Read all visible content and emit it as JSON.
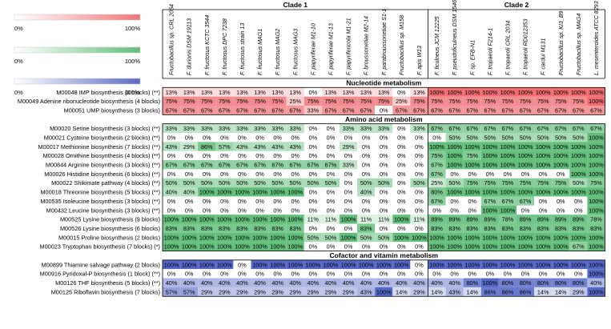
{
  "chart_data": {
    "type": "heatmap",
    "legend": [
      {
        "min": "0%",
        "max": "100%",
        "color": "#f0767a"
      },
      {
        "min": "0%",
        "max": "100%",
        "color": "#62bf79"
      },
      {
        "min": "0%",
        "max": "100%",
        "color": "#5a6ac6"
      }
    ],
    "clades": [
      {
        "label": "Clade 1",
        "count": 15
      },
      {
        "label": "Clade 2",
        "count": 10
      }
    ],
    "columns": [
      "Fructobacillus sp. CRL 2054",
      "F. durionis DSM 19113",
      "F. fructosus KCTC 3544",
      "F. fructosus DPC 7238",
      "F. fructosus strain 13",
      "F. fructosus MAG1",
      "F. fructosus MAG2",
      "F. fructosus MAG3",
      "F. papyriferae M1-10",
      "F. papyriferae M1-13",
      "F. papyrifericola M1-21",
      "F. broussonetiae M2-14",
      "F. parabroussonetiae S1-1",
      "Fructobacillus sp. M158",
      "F. apis W13",
      "F. ficulneus JCM 12225",
      "F. pseudoficulneus DSM 15468",
      "F. sp. EFB-N1",
      "F. tropaeoli F214-1",
      "F. tropaeoli CRL 2034",
      "F. tropaeoli RD012353",
      "F. cardui M131",
      "Fructobacillus sp. KI3_B9",
      "Fructobacillus sp. MAG4",
      "L. mesenteroides ATCC 8293"
    ],
    "sections": [
      {
        "title": "Nucleotide metabolism",
        "color": "red",
        "rows": [
          {
            "label": "M00048 IMP biosynthesis (8 blocks) (**)",
            "values": [
              13,
              13,
              13,
              13,
              13,
              13,
              13,
              13,
              0,
              13,
              13,
              13,
              13,
              0,
              13,
              100,
              100,
              100,
              100,
              100,
              100,
              100,
              100,
              100,
              100
            ]
          },
          {
            "label": "M00049 Adenine ribonucleotide biosynthesis (4 blocks)",
            "values": [
              75,
              75,
              75,
              75,
              75,
              75,
              75,
              25,
              75,
              75,
              75,
              75,
              75,
              25,
              75,
              75,
              75,
              75,
              75,
              75,
              75,
              75,
              75,
              75,
              100
            ]
          },
          {
            "label": "M00051 UMP biosynthesis (3 blocks)",
            "values": [
              67,
              67,
              67,
              67,
              67,
              67,
              67,
              67,
              33,
              67,
              67,
              67,
              0,
              67,
              67,
              67,
              67,
              67,
              67,
              67,
              67,
              67,
              67,
              67,
              67
            ]
          }
        ]
      },
      {
        "title": "Amino acid metabolism",
        "color": "green",
        "rows": [
          {
            "label": "M00020 Serine biosynthesis (3 blocks) (**)",
            "values": [
              33,
              33,
              33,
              33,
              33,
              33,
              33,
              33,
              0,
              0,
              33,
              33,
              33,
              0,
              33,
              67,
              67,
              67,
              67,
              67,
              67,
              67,
              67,
              67,
              67
            ]
          },
          {
            "label": "M00021 Cysteine biosynthesis (2 blocks) (**)",
            "values": [
              0,
              0,
              0,
              0,
              0,
              0,
              0,
              0,
              0,
              0,
              0,
              0,
              0,
              0,
              0,
              0,
              50,
              50,
              50,
              50,
              50,
              50,
              50,
              50,
              100
            ]
          },
          {
            "label": "M00017 Methionine biosynthesis (7 blocks) (**)",
            "values": [
              43,
              29,
              86,
              57,
              43,
              43,
              43,
              43,
              0,
              0,
              29,
              0,
              0,
              0,
              0,
              100,
              100,
              100,
              100,
              100,
              100,
              100,
              100,
              100,
              100
            ]
          },
          {
            "label": "M00028 Ornithine biosynthesis (4 blocks) (**)",
            "values": [
              0,
              0,
              0,
              0,
              0,
              0,
              0,
              0,
              0,
              0,
              0,
              0,
              0,
              0,
              0,
              75,
              100,
              75,
              100,
              100,
              100,
              100,
              100,
              100,
              100
            ]
          },
          {
            "label": "M00844 Arginine biosynthesis (3 blocks) (**)",
            "values": [
              67,
              67,
              67,
              67,
              67,
              67,
              67,
              67,
              67,
              67,
              33,
              0,
              0,
              0,
              0,
              67,
              100,
              100,
              100,
              100,
              100,
              100,
              100,
              100,
              100
            ]
          },
          {
            "label": "M00026 Histidine biosynthesis (6 blocks) (**)",
            "values": [
              0,
              0,
              0,
              0,
              0,
              0,
              0,
              0,
              0,
              0,
              0,
              0,
              0,
              0,
              0,
              67,
              0,
              0,
              0,
              0,
              0,
              0,
              0,
              100,
              100
            ]
          },
          {
            "label": "M00022 Shikimate pathway (4 blocks) (**)",
            "values": [
              50,
              50,
              50,
              50,
              50,
              50,
              50,
              50,
              50,
              50,
              0,
              50,
              50,
              0,
              50,
              25,
              50,
              75,
              75,
              75,
              75,
              75,
              75,
              50,
              75
            ]
          },
          {
            "label": "M00018 Threonine biosynthesis (5 blocks) (**)",
            "values": [
              40,
              40,
              100,
              100,
              100,
              100,
              100,
              100,
              0,
              0,
              0,
              40,
              0,
              0,
              0,
              80,
              100,
              100,
              100,
              100,
              100,
              100,
              100,
              100,
              100
            ]
          },
          {
            "label": "M00535 Isoleucine biosynthesis (3 blocks) (**)",
            "values": [
              0,
              0,
              0,
              0,
              0,
              0,
              0,
              0,
              0,
              0,
              0,
              0,
              0,
              0,
              0,
              67,
              0,
              0,
              67,
              67,
              67,
              0,
              0,
              0,
              100
            ]
          },
          {
            "label": "M00432 Leucine biosynthesis (3 blocks) (**)",
            "values": [
              0,
              0,
              0,
              0,
              0,
              0,
              0,
              0,
              0,
              0,
              0,
              0,
              0,
              0,
              0,
              0,
              0,
              0,
              100,
              100,
              0,
              0,
              0,
              0,
              100
            ]
          },
          {
            "label": "M00525 Lysine biosynthesis (9 blocks)",
            "values": [
              100,
              100,
              100,
              100,
              100,
              100,
              100,
              100,
              11,
              11,
              100,
              11,
              11,
              100,
              11,
              89,
              89,
              89,
              89,
              78,
              89,
              89,
              89,
              89,
              78
            ]
          },
          {
            "label": "M00526 Lysine biosynthesis (6 blocks)",
            "values": [
              83,
              83,
              83,
              83,
              83,
              83,
              83,
              83,
              0,
              0,
              0,
              83,
              0,
              0,
              0,
              83,
              83,
              83,
              83,
              83,
              83,
              83,
              83,
              83,
              83
            ]
          },
          {
            "label": "M00015 Proline biosynthesis (2 blocks)",
            "values": [
              100,
              100,
              100,
              100,
              100,
              100,
              100,
              100,
              50,
              50,
              100,
              50,
              50,
              100,
              100,
              100,
              100,
              100,
              100,
              100,
              100,
              100,
              100,
              100,
              100
            ]
          },
          {
            "label": "M00023 Tryptophan biosynthesis (7 blocks) (*)",
            "values": [
              100,
              100,
              100,
              100,
              100,
              100,
              100,
              100,
              0,
              0,
              0,
              0,
              0,
              0,
              0,
              100,
              100,
              100,
              100,
              100,
              100,
              100,
              100,
              67,
              100
            ]
          }
        ]
      },
      {
        "title": "Cofactor and vitamin metabolism",
        "color": "blue",
        "rows": [
          {
            "label": "M00899 Thiamine salvage pathway (2 blocks)",
            "values": [
              100,
              100,
              100,
              100,
              0,
              100,
              100,
              100,
              100,
              100,
              100,
              100,
              100,
              100,
              0,
              100,
              100,
              100,
              100,
              100,
              100,
              100,
              100,
              100,
              100
            ]
          },
          {
            "label": "M00916 Pyridoxal-P biosynthesis (1 block) (**)",
            "values": [
              0,
              0,
              0,
              0,
              0,
              0,
              0,
              0,
              0,
              0,
              0,
              0,
              0,
              0,
              0,
              0,
              0,
              0,
              0,
              0,
              0,
              0,
              0,
              0,
              100
            ]
          },
          {
            "label": "M00126 THF biosynthesis (5 blocks) (**)",
            "values": [
              40,
              40,
              40,
              40,
              40,
              40,
              40,
              40,
              40,
              40,
              40,
              40,
              40,
              40,
              40,
              40,
              40,
              80,
              100,
              80,
              80,
              80,
              80,
              80,
              40
            ]
          },
          {
            "label": "M00125 Riboflavin biosynthesis (7 blocks)",
            "values": [
              57,
              57,
              29,
              29,
              29,
              29,
              29,
              29,
              29,
              29,
              29,
              43,
              100,
              14,
              29,
              14,
              43,
              14,
              86,
              86,
              86,
              14,
              14,
              29,
              100
            ]
          }
        ]
      }
    ]
  }
}
